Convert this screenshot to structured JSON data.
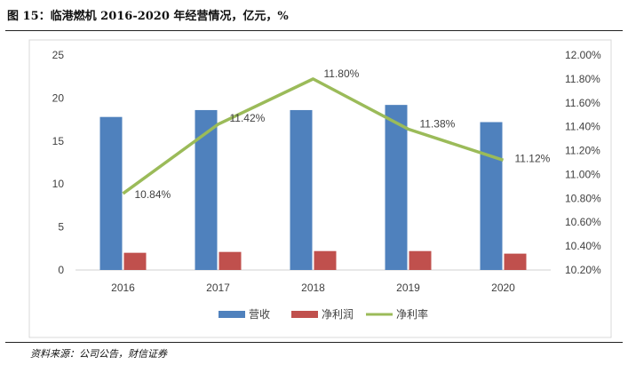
{
  "header": {
    "title": "图 15：临港燃机 2016-2020 年经营情况，亿元，%"
  },
  "footer": {
    "source": "资料来源：公司公告，财信证券"
  },
  "chart_data": {
    "type": "bar",
    "title": "图 15：临港燃机 2016-2020 年经营情况，亿元，%",
    "categories": [
      "2016",
      "2017",
      "2018",
      "2019",
      "2020"
    ],
    "series": [
      {
        "name": "营收",
        "type": "bar",
        "axis": "left",
        "color": "#4F81BD",
        "values": [
          17.8,
          18.6,
          18.6,
          19.2,
          17.2
        ]
      },
      {
        "name": "净利润",
        "type": "bar",
        "axis": "left",
        "color": "#C0504D",
        "values": [
          2.0,
          2.1,
          2.2,
          2.2,
          1.9
        ]
      },
      {
        "name": "净利率",
        "type": "line",
        "axis": "right",
        "color": "#9BBB59",
        "values": [
          10.84,
          11.42,
          11.8,
          11.38,
          11.12
        ],
        "labels": [
          "10.84%",
          "11.42%",
          "11.80%",
          "11.38%",
          "11.12%"
        ]
      }
    ],
    "left_axis": {
      "ylim": [
        0,
        25
      ],
      "ticks": [
        "0",
        "5",
        "10",
        "15",
        "20",
        "25"
      ]
    },
    "right_axis": {
      "ylim": [
        10.2,
        12.0
      ],
      "ticks": [
        "10.20%",
        "10.40%",
        "10.60%",
        "10.80%",
        "11.00%",
        "11.20%",
        "11.40%",
        "11.60%",
        "11.80%",
        "12.00%"
      ]
    },
    "legend": {
      "position": "bottom",
      "items": [
        "营收",
        "净利润",
        "净利率"
      ]
    },
    "grid": false
  }
}
